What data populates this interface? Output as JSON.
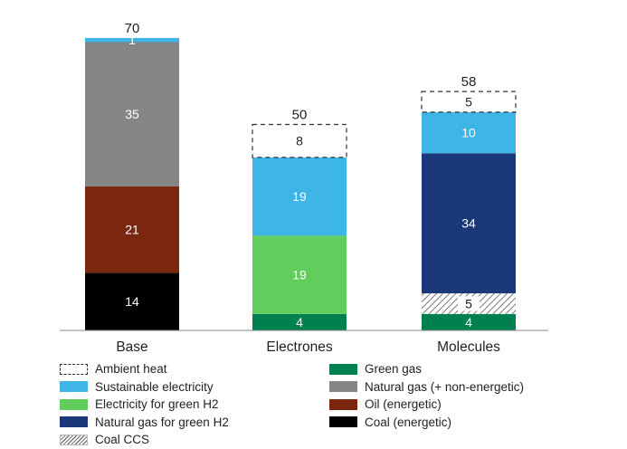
{
  "chart_data": {
    "type": "bar",
    "stacked": true,
    "categories": [
      "Base",
      "Electrones",
      "Molecules"
    ],
    "totals": [
      "70",
      "50",
      "58"
    ],
    "series": [
      {
        "name": "Coal (energetic)",
        "color": "#000000",
        "style": "solid",
        "values": [
          14,
          0,
          0
        ]
      },
      {
        "name": "Green gas",
        "color": "#00804f",
        "style": "solid",
        "values": [
          0,
          4,
          4
        ]
      },
      {
        "name": "Coal CCS",
        "color": "#8a8a8a",
        "style": "hatch",
        "values": [
          0,
          0,
          5
        ]
      },
      {
        "name": "Oil (energetic)",
        "color": "#7b2710",
        "style": "solid",
        "values": [
          21,
          0,
          0
        ]
      },
      {
        "name": "Electricity for green H2",
        "color": "#61cd5c",
        "style": "solid",
        "values": [
          0,
          19,
          0
        ]
      },
      {
        "name": "Natural gas for green H2",
        "color": "#1b3878",
        "style": "solid",
        "values": [
          0,
          0,
          34
        ]
      },
      {
        "name": "Natural gas (+ non-energetic)",
        "color": "#858585",
        "style": "solid",
        "values": [
          35,
          0,
          0
        ]
      },
      {
        "name": "Sustainable electricity",
        "color": "#3db5e7",
        "style": "solid",
        "values": [
          1,
          19,
          10
        ]
      },
      {
        "name": "Ambient heat",
        "color": "#ffffff",
        "style": "dashed",
        "values": [
          0,
          8,
          5
        ]
      }
    ],
    "legend": {
      "position": "bottom",
      "items": [
        {
          "label": "Ambient heat",
          "color": "#ffffff",
          "style": "dashed"
        },
        {
          "label": "Green gas",
          "color": "#00804f",
          "style": "solid"
        },
        {
          "label": "Sustainable electricity",
          "color": "#3db5e7",
          "style": "solid"
        },
        {
          "label": "Natural gas (+ non-energetic)",
          "color": "#858585",
          "style": "solid"
        },
        {
          "label": "Electricity for green H2",
          "color": "#61cd5c",
          "style": "solid"
        },
        {
          "label": "Oil (energetic)",
          "color": "#7b2710",
          "style": "solid"
        },
        {
          "label": "Natural gas for green H2",
          "color": "#1b3878",
          "style": "solid"
        },
        {
          "label": "Coal (energetic)",
          "color": "#000000",
          "style": "solid"
        },
        {
          "label": "Coal CCS",
          "color": "#8a8a8a",
          "style": "hatch"
        }
      ]
    },
    "ylim": [
      0,
      70
    ],
    "grid": false
  }
}
